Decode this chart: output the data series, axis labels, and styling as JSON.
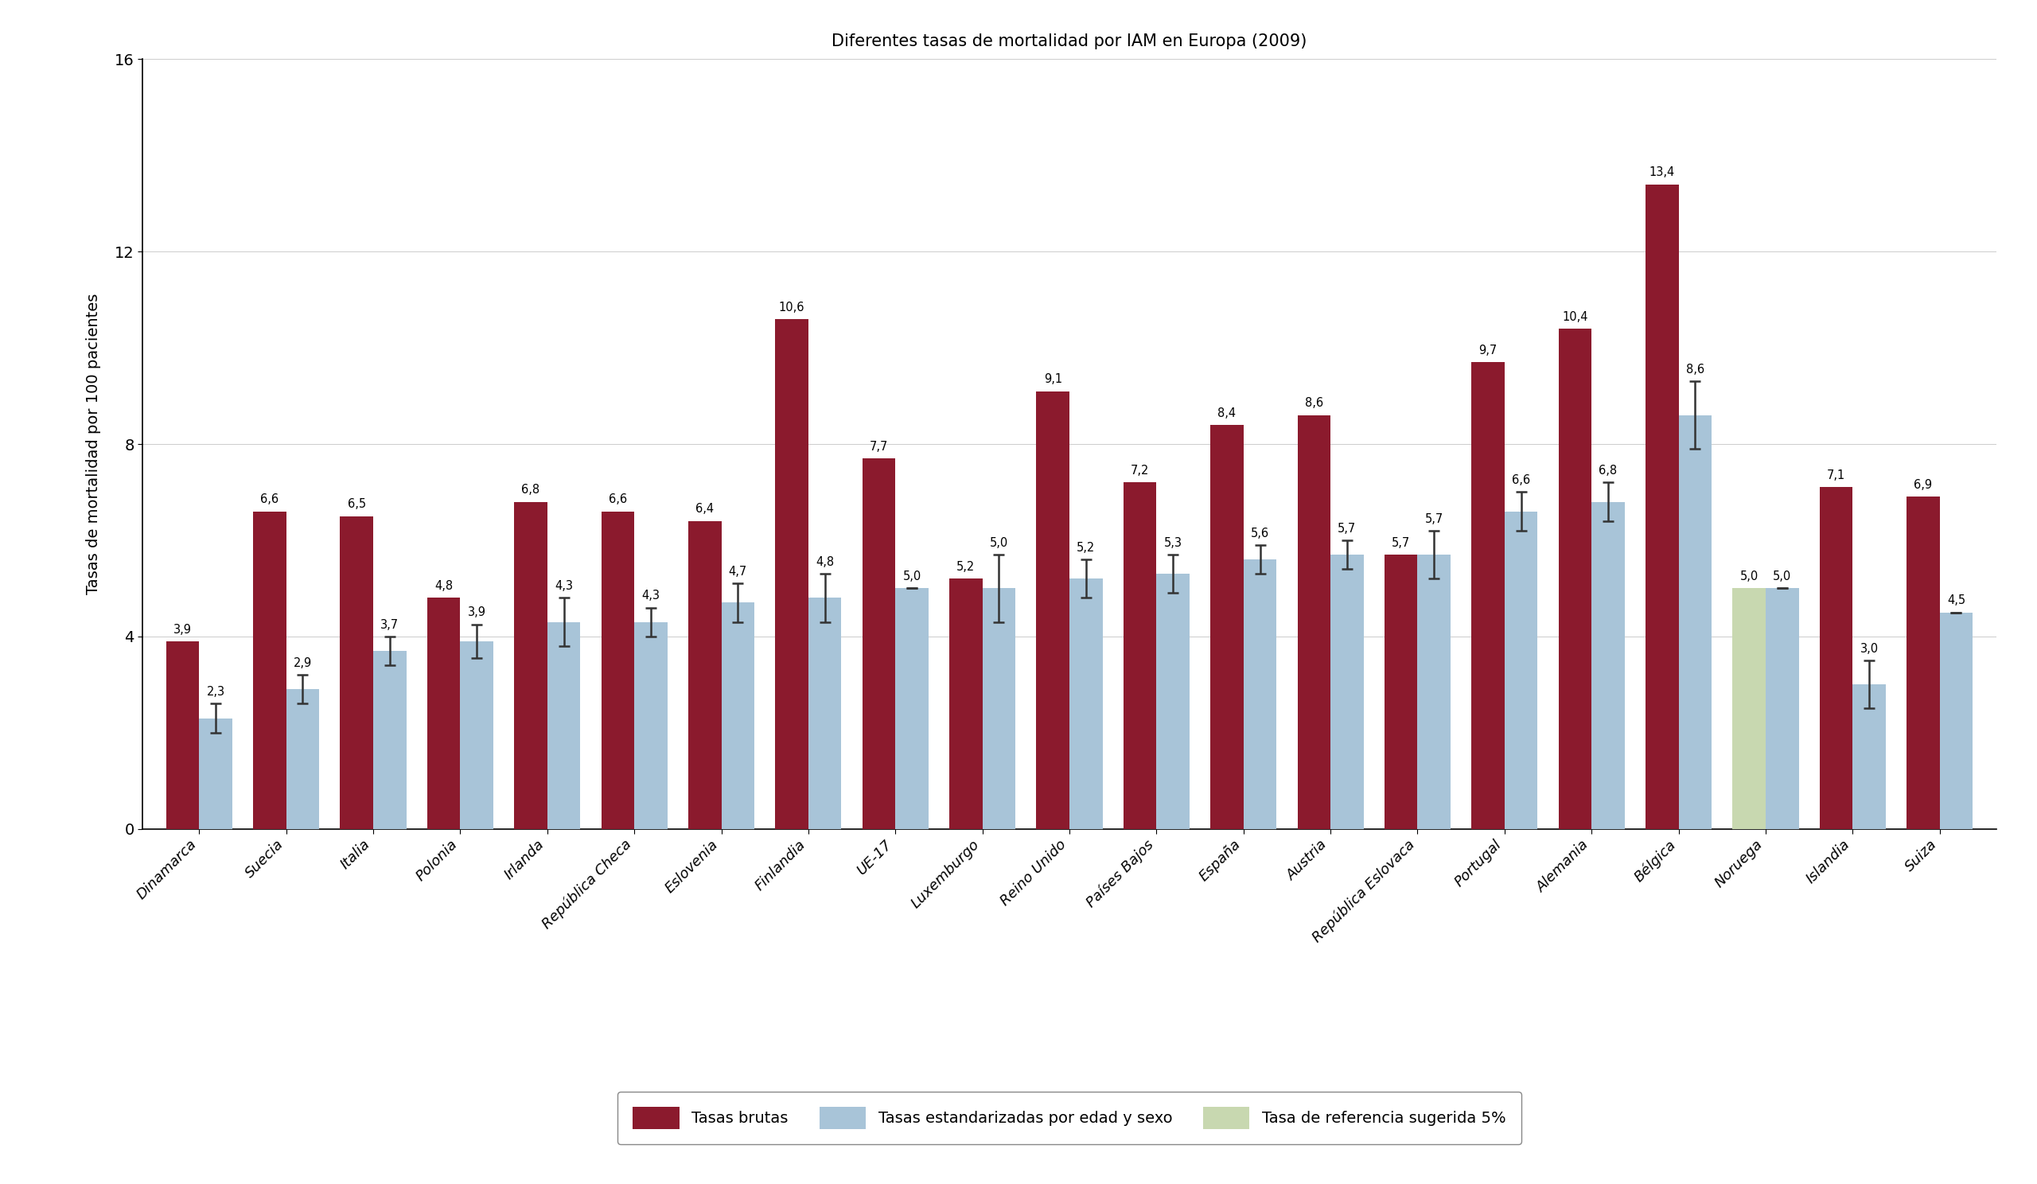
{
  "title": "Diferentes tasas de mortalidad por IAM en Europa (2009)",
  "ylabel": "Tasas de mortalidad por 100 pacientes",
  "categories": [
    "Dinamarca",
    "Suecia",
    "Italia",
    "Polonia",
    "Irlanda",
    "República Checa",
    "Eslovenia",
    "Finlandia",
    "UE-17",
    "Luxemburgo",
    "Reino Unido",
    "Países Bajos",
    "España",
    "Austria",
    "República Eslovaca",
    "Portugal",
    "Alemania",
    "Bélgica",
    "Noruega",
    "Islandia",
    "Suiza"
  ],
  "bruta": [
    3.9,
    6.6,
    6.5,
    4.8,
    6.8,
    6.6,
    6.4,
    10.6,
    7.7,
    5.2,
    9.1,
    7.2,
    8.4,
    8.6,
    5.7,
    9.7,
    10.4,
    13.4,
    5.0,
    7.1,
    6.9
  ],
  "estandarizada": [
    2.3,
    2.9,
    3.7,
    3.9,
    4.3,
    4.3,
    4.7,
    4.8,
    5.0,
    5.0,
    5.2,
    5.3,
    5.6,
    5.7,
    5.7,
    6.6,
    6.8,
    8.6,
    5.0,
    3.0,
    4.5
  ],
  "bruta_color": "#8B1A2D",
  "estandarizada_color": "#A8C4D8",
  "referencia_color": "#C8D8B0",
  "ylim": [
    0,
    16
  ],
  "yticks": [
    0,
    4,
    8,
    12,
    16
  ],
  "noruega_idx": 18,
  "error_bars_estand": [
    0.3,
    0.3,
    0.3,
    0.35,
    0.5,
    0.3,
    0.4,
    0.5,
    0.0,
    0.7,
    0.4,
    0.4,
    0.3,
    0.3,
    0.5,
    0.4,
    0.4,
    0.7,
    0.0,
    0.5,
    0.0
  ],
  "legend_labels": [
    "Tasas brutas",
    "Tasas estandarizadas por edad y sexo",
    "Tasa de referencia sugerida 5%"
  ],
  "background_color": "#FFFFFF"
}
